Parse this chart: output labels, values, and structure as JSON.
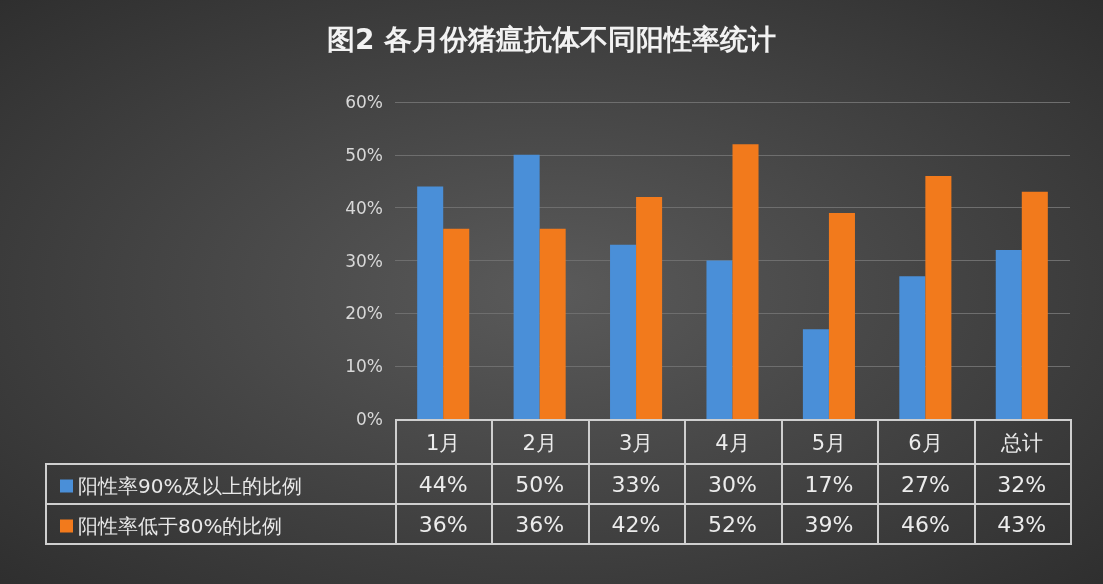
{
  "chart_data": {
    "type": "bar",
    "title": "图2 各月份猪瘟抗体不同阳性率统计",
    "categories": [
      "1月",
      "2月",
      "3月",
      "4月",
      "5月",
      "6月",
      "总计"
    ],
    "series": [
      {
        "name": "阳性率90%及以上的比例",
        "color": "#4a8fd8",
        "values": [
          44,
          50,
          33,
          30,
          17,
          27,
          32
        ],
        "value_labels": [
          "44%",
          "50%",
          "33%",
          "30%",
          "17%",
          "27%",
          "32%"
        ]
      },
      {
        "name": "阳性率低于80%的比例",
        "color": "#f27a1c",
        "values": [
          36,
          36,
          42,
          52,
          39,
          46,
          43
        ],
        "value_labels": [
          "36%",
          "36%",
          "42%",
          "52%",
          "39%",
          "46%",
          "43%"
        ]
      }
    ],
    "ylim": [
      0,
      60
    ],
    "yticks": [
      {
        "value": 0,
        "label": "0%"
      },
      {
        "value": 10,
        "label": "10%"
      },
      {
        "value": 20,
        "label": "20%"
      },
      {
        "value": 30,
        "label": "30%"
      },
      {
        "value": 40,
        "label": "40%"
      },
      {
        "value": 50,
        "label": "50%"
      },
      {
        "value": 60,
        "label": "60%"
      }
    ],
    "grid": "y",
    "legend": "bottom left"
  }
}
